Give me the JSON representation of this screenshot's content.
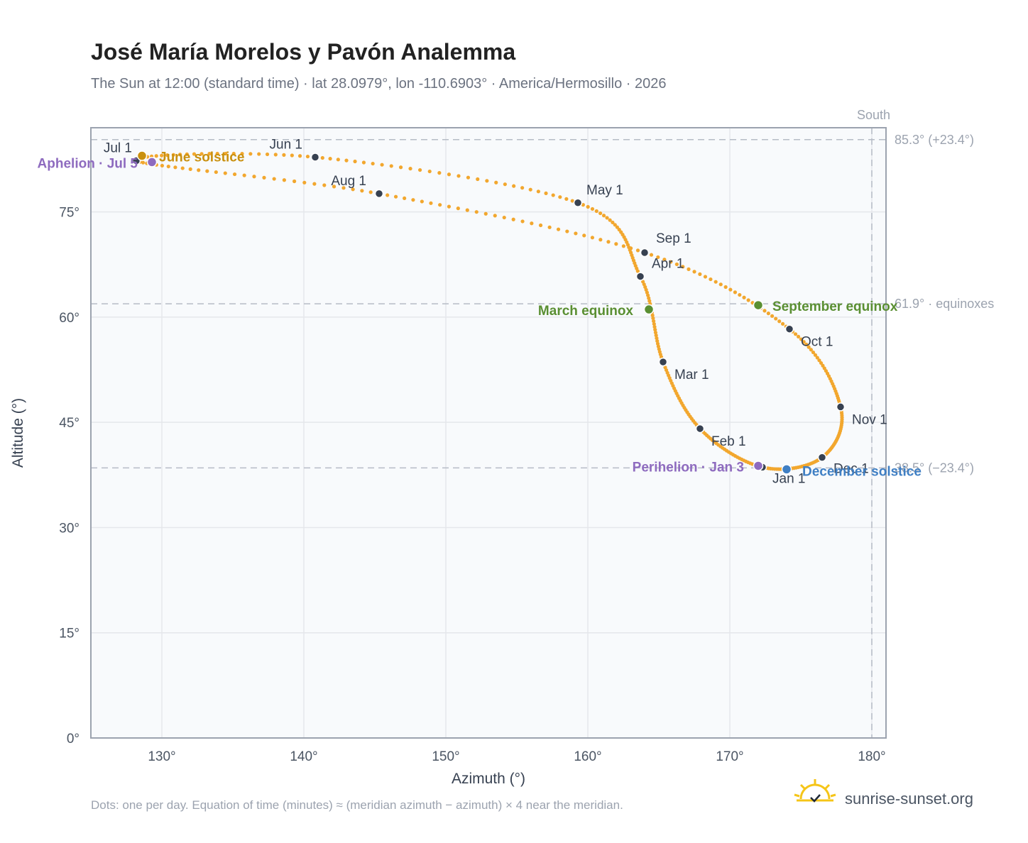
{
  "title": "José María Morelos y Pavón Analemma",
  "subtitle": "The Sun at 12:00 (standard time) · lat 28.0979°, lon -110.6903° · America/Hermosillo · 2026",
  "footnote": "Dots: one per day. Equation of time (minutes) ≈ (meridian azimuth − azimuth) × 4 near the meridian.",
  "brand": "sunrise-sunset.org",
  "colors": {
    "path": "#f2a72e",
    "month_dot": "#374151",
    "solstice_june": "#c9900f",
    "solstice_december": "#3f7fc4",
    "equinox": "#5a8f32",
    "apsis": "#8e6bbf",
    "plot_bg": "#f8fafc",
    "grid": "#e5e7eb",
    "frame": "#9ca3af"
  },
  "chart_data": {
    "type": "scatter",
    "xlabel": "Azimuth (°)",
    "ylabel": "Altitude (°)",
    "xlim": [
      125,
      181
    ],
    "ylim": [
      0,
      87
    ],
    "xticks": [
      130,
      140,
      150,
      160,
      170,
      180
    ],
    "xtick_labels": [
      "130°",
      "140°",
      "150°",
      "160°",
      "170°",
      "180°"
    ],
    "yticks": [
      0,
      15,
      30,
      45,
      60,
      75
    ],
    "ytick_labels": [
      "0°",
      "15°",
      "30°",
      "45°",
      "60°",
      "75°"
    ],
    "grid": true,
    "reference_lines": {
      "horizontal": [
        {
          "y": 85.3,
          "label": "85.3° (+23.4°)"
        },
        {
          "y": 61.9,
          "label": "61.9° · equinoxes"
        },
        {
          "y": 38.5,
          "label": "38.5° (−23.4°)"
        }
      ],
      "vertical": [
        {
          "x": 180.0,
          "label": "South"
        }
      ]
    },
    "months": [
      {
        "label": "Jan 1",
        "azimuth": 172.3,
        "altitude": 38.6
      },
      {
        "label": "Feb 1",
        "azimuth": 167.9,
        "altitude": 44.1
      },
      {
        "label": "Mar 1",
        "azimuth": 165.3,
        "altitude": 53.6
      },
      {
        "label": "Apr 1",
        "azimuth": 163.7,
        "altitude": 65.8
      },
      {
        "label": "May 1",
        "azimuth": 159.3,
        "altitude": 76.3
      },
      {
        "label": "Jun 1",
        "azimuth": 140.8,
        "altitude": 82.8
      },
      {
        "label": "Jul 1",
        "azimuth": 128.2,
        "altitude": 82.3
      },
      {
        "label": "Aug 1",
        "azimuth": 145.3,
        "altitude": 77.6
      },
      {
        "label": "Sep 1",
        "azimuth": 164.0,
        "altitude": 69.2
      },
      {
        "label": "Oct 1",
        "azimuth": 174.2,
        "altitude": 58.3
      },
      {
        "label": "Nov 1",
        "azimuth": 177.8,
        "altitude": 47.2
      },
      {
        "label": "Dec 1",
        "azimuth": 176.5,
        "altitude": 40.0
      }
    ],
    "events": [
      {
        "label": "June solstice",
        "azimuth": 128.6,
        "altitude": 83.0,
        "kind": "solstice_june"
      },
      {
        "label": "December solstice",
        "azimuth": 174.0,
        "altitude": 38.3,
        "kind": "solstice_december"
      },
      {
        "label": "March equinox",
        "azimuth": 164.3,
        "altitude": 61.1,
        "kind": "equinox"
      },
      {
        "label": "September equinox",
        "azimuth": 172.0,
        "altitude": 61.7,
        "kind": "equinox"
      },
      {
        "label": "Aphelion · Jul 5",
        "azimuth": 129.3,
        "altitude": 82.1,
        "kind": "apsis"
      },
      {
        "label": "Perihelion · Jan 3",
        "azimuth": 172.0,
        "altitude": 38.8,
        "kind": "apsis"
      }
    ]
  }
}
